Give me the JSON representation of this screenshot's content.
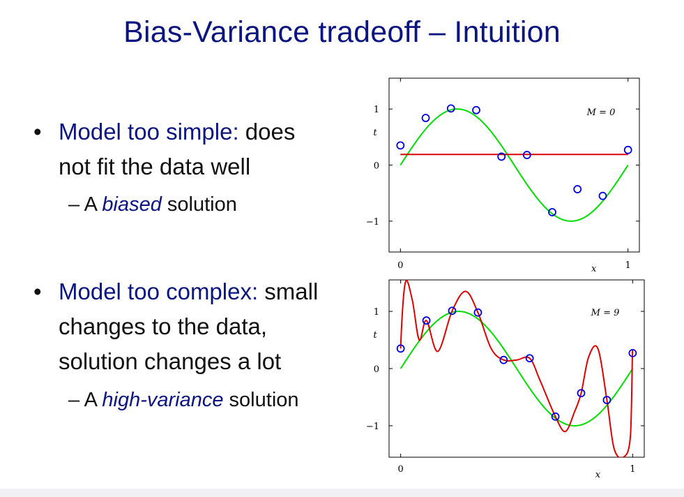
{
  "slide": {
    "title": "Bias-Variance tradeoff – Intuition",
    "bullets": [
      {
        "marker": "•",
        "highlight": "Model too simple:",
        "line1_rest": " does",
        "line2": "not fit the data well",
        "sub": {
          "prefix": "– A ",
          "italic": "biased",
          "suffix": " solution"
        }
      },
      {
        "marker": "•",
        "highlight": "Model too complex:",
        "line1_rest": " small",
        "line2": "changes to the data,",
        "line3": "solution changes a lot",
        "sub": {
          "prefix": "– A ",
          "italic": "high-variance",
          "suffix": " solution"
        }
      }
    ]
  },
  "chart_data": [
    {
      "type": "line",
      "annotation": "M = 0",
      "xlabel": "x",
      "ylabel": "t",
      "xticks": [
        "0",
        "1"
      ],
      "yticks": [
        "1",
        "0",
        "−1"
      ],
      "xlim": [
        -0.05,
        1.05
      ],
      "ylim": [
        -1.55,
        1.55
      ],
      "points": [
        {
          "x": 0.0,
          "y": 0.35
        },
        {
          "x": 0.111,
          "y": 0.84
        },
        {
          "x": 0.222,
          "y": 1.01
        },
        {
          "x": 0.333,
          "y": 0.98
        },
        {
          "x": 0.444,
          "y": 0.15
        },
        {
          "x": 0.556,
          "y": 0.18
        },
        {
          "x": 0.667,
          "y": -0.84
        },
        {
          "x": 0.778,
          "y": -0.43
        },
        {
          "x": 0.889,
          "y": -0.55
        },
        {
          "x": 1.0,
          "y": 0.27
        }
      ],
      "true_curve": "sin(2πx)",
      "fit": {
        "degree": 0,
        "constant": 0.19
      },
      "colors": {
        "points": "#0000dd",
        "true_curve": "#00dd00",
        "fit": "#dd0000"
      }
    },
    {
      "type": "line",
      "annotation": "M = 9",
      "xlabel": "x",
      "ylabel": "t",
      "xticks": [
        "0",
        "1"
      ],
      "yticks": [
        "1",
        "0",
        "−1"
      ],
      "xlim": [
        -0.05,
        1.05
      ],
      "ylim": [
        -1.55,
        1.55
      ],
      "points": [
        {
          "x": 0.0,
          "y": 0.35
        },
        {
          "x": 0.111,
          "y": 0.84
        },
        {
          "x": 0.222,
          "y": 1.01
        },
        {
          "x": 0.333,
          "y": 0.98
        },
        {
          "x": 0.444,
          "y": 0.15
        },
        {
          "x": 0.556,
          "y": 0.18
        },
        {
          "x": 0.667,
          "y": -0.84
        },
        {
          "x": 0.778,
          "y": -0.43
        },
        {
          "x": 0.889,
          "y": -0.55
        },
        {
          "x": 1.0,
          "y": 0.27
        }
      ],
      "true_curve": "sin(2πx)",
      "fit": {
        "degree": 9,
        "samples": [
          [
            0.0,
            0.35
          ],
          [
            0.02,
            1.5
          ],
          [
            0.05,
            1.2
          ],
          [
            0.08,
            0.5
          ],
          [
            0.111,
            0.84
          ],
          [
            0.16,
            0.3
          ],
          [
            0.222,
            1.01
          ],
          [
            0.28,
            1.35
          ],
          [
            0.333,
            0.98
          ],
          [
            0.39,
            0.35
          ],
          [
            0.444,
            0.15
          ],
          [
            0.5,
            0.15
          ],
          [
            0.556,
            0.18
          ],
          [
            0.6,
            -0.2
          ],
          [
            0.667,
            -0.84
          ],
          [
            0.71,
            -1.1
          ],
          [
            0.75,
            -0.75
          ],
          [
            0.778,
            -0.43
          ],
          [
            0.81,
            0.2
          ],
          [
            0.85,
            0.35
          ],
          [
            0.889,
            -0.55
          ],
          [
            0.92,
            -1.4
          ],
          [
            0.96,
            -1.55
          ],
          [
            0.99,
            -1.2
          ],
          [
            1.0,
            0.27
          ]
        ]
      },
      "colors": {
        "points": "#0000dd",
        "true_curve": "#00dd00",
        "fit": "#dd0000"
      }
    }
  ]
}
